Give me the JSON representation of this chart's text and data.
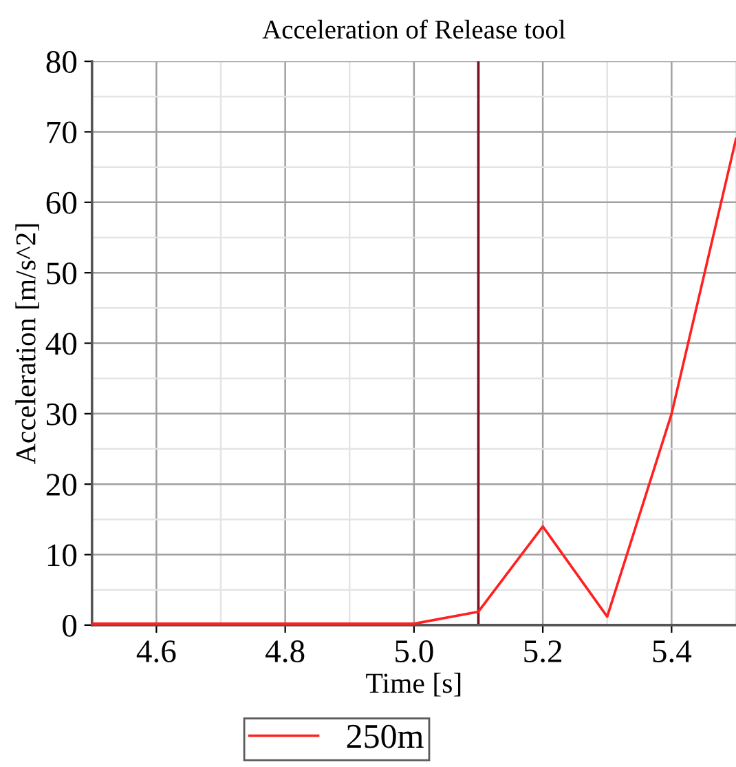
{
  "chart_data": {
    "type": "line",
    "title": "Acceleration of Release tool",
    "xlabel": "Time [s]",
    "ylabel": "Acceleration [m/s^2]",
    "x": [
      4.5,
      4.6,
      4.7,
      4.8,
      4.9,
      5.0,
      5.1,
      5.2,
      5.3,
      5.4,
      5.5
    ],
    "series": [
      {
        "name": "250m",
        "color": "#ff2020",
        "values": [
          0.2,
          0.2,
          0.2,
          0.2,
          0.2,
          0.2,
          1.9,
          14,
          1.2,
          30,
          69
        ]
      }
    ],
    "xlim": [
      4.5,
      5.5
    ],
    "xticks": [
      4.6,
      4.8,
      {
        "value": 5,
        "label": "5.0"
      },
      5.2,
      5.4
    ],
    "ylim": [
      0,
      80
    ],
    "yticks": [
      0,
      10,
      20,
      30,
      40,
      50,
      60,
      70,
      80
    ],
    "ref_lines": [
      {
        "axis": "x",
        "value": 5.1,
        "color": "#7a1020"
      }
    ],
    "grid": true,
    "legend": "bottom",
    "marker": "none",
    "line_style": "solid"
  }
}
